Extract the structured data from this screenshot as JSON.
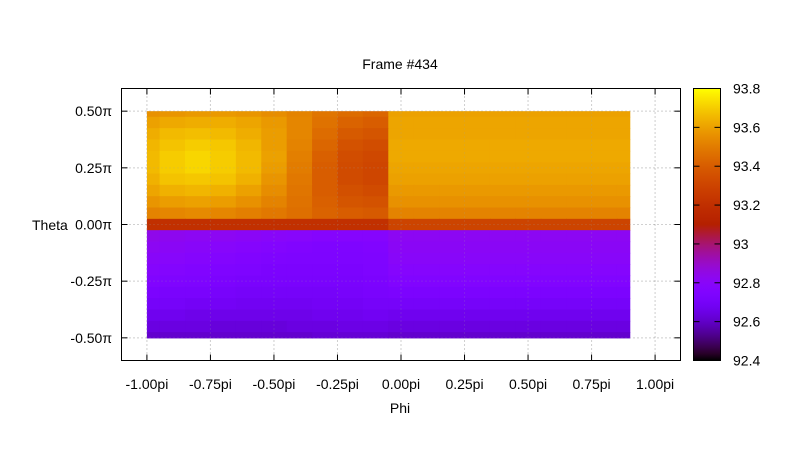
{
  "chart_data": {
    "type": "heatmap",
    "title": "Frame #434",
    "xlabel": "Phi",
    "ylabel": "Theta",
    "xlim": [
      -1.1,
      1.1
    ],
    "ylim": [
      -0.6,
      0.6
    ],
    "x_ticks": [
      {
        "value": -1.0,
        "label": "-1.00pi"
      },
      {
        "value": -0.75,
        "label": "-0.75pi"
      },
      {
        "value": -0.5,
        "label": "-0.50pi"
      },
      {
        "value": -0.25,
        "label": "-0.25pi"
      },
      {
        "value": 0.0,
        "label": "0.00pi"
      },
      {
        "value": 0.25,
        "label": "0.25pi"
      },
      {
        "value": 0.5,
        "label": "0.50pi"
      },
      {
        "value": 0.75,
        "label": "0.75pi"
      },
      {
        "value": 1.0,
        "label": "1.00pi"
      }
    ],
    "y_ticks": [
      {
        "value": 0.5,
        "label": "0.50π"
      },
      {
        "value": 0.25,
        "label": "0.25π"
      },
      {
        "value": 0.0,
        "label": "0.00π"
      },
      {
        "value": -0.25,
        "label": "-0.25π"
      },
      {
        "value": -0.5,
        "label": "-0.50π"
      }
    ],
    "grid": true,
    "data_extent": {
      "phi": [
        -1.0,
        0.9
      ],
      "theta": [
        -0.5,
        0.5
      ]
    },
    "phi_samples": [
      -1.0,
      -0.9,
      -0.8,
      -0.7,
      -0.6,
      -0.5,
      -0.4,
      -0.3,
      -0.2,
      -0.1,
      0.0,
      0.1,
      0.2,
      0.3,
      0.4,
      0.5,
      0.6,
      0.7,
      0.8,
      0.9
    ],
    "theta_samples": [
      0.5,
      0.45,
      0.4,
      0.35,
      0.3,
      0.25,
      0.2,
      0.15,
      0.1,
      0.05,
      0.0,
      -0.05,
      -0.1,
      -0.15,
      -0.2,
      -0.25,
      -0.3,
      -0.35,
      -0.4,
      -0.45,
      -0.5
    ],
    "values": [
      [
        93.56,
        93.57,
        93.58,
        93.58,
        93.57,
        93.55,
        93.52,
        93.48,
        93.45,
        93.43,
        93.6,
        93.6,
        93.6,
        93.6,
        93.6,
        93.6,
        93.6,
        93.6,
        93.6,
        93.6
      ],
      [
        93.6,
        93.62,
        93.63,
        93.63,
        93.61,
        93.58,
        93.53,
        93.47,
        93.42,
        93.4,
        93.61,
        93.61,
        93.61,
        93.61,
        93.61,
        93.61,
        93.61,
        93.61,
        93.61,
        93.61
      ],
      [
        93.63,
        93.66,
        93.67,
        93.66,
        93.63,
        93.59,
        93.53,
        93.45,
        93.39,
        93.37,
        93.61,
        93.61,
        93.61,
        93.61,
        93.61,
        93.61,
        93.61,
        93.61,
        93.61,
        93.61
      ],
      [
        93.65,
        93.68,
        93.7,
        93.69,
        93.65,
        93.59,
        93.52,
        93.43,
        93.36,
        93.34,
        93.62,
        93.62,
        93.62,
        93.62,
        93.62,
        93.62,
        93.62,
        93.62,
        93.62,
        93.62
      ],
      [
        93.66,
        93.7,
        93.72,
        93.7,
        93.66,
        93.6,
        93.51,
        93.41,
        93.34,
        93.32,
        93.62,
        93.62,
        93.62,
        93.62,
        93.62,
        93.62,
        93.62,
        93.62,
        93.62,
        93.62
      ],
      [
        93.66,
        93.7,
        93.72,
        93.7,
        93.66,
        93.59,
        93.5,
        93.4,
        93.33,
        93.31,
        93.61,
        93.61,
        93.61,
        93.61,
        93.61,
        93.61,
        93.61,
        93.61,
        93.61,
        93.61
      ],
      [
        93.64,
        93.68,
        93.69,
        93.68,
        93.64,
        93.57,
        93.49,
        93.4,
        93.33,
        93.31,
        93.6,
        93.6,
        93.6,
        93.6,
        93.6,
        93.6,
        93.6,
        93.6,
        93.6,
        93.6
      ],
      [
        93.61,
        93.64,
        93.65,
        93.64,
        93.6,
        93.55,
        93.48,
        93.4,
        93.35,
        93.33,
        93.58,
        93.58,
        93.58,
        93.58,
        93.58,
        93.58,
        93.58,
        93.58,
        93.58,
        93.58
      ],
      [
        93.57,
        93.59,
        93.6,
        93.59,
        93.56,
        93.52,
        93.47,
        93.41,
        93.37,
        93.36,
        93.56,
        93.56,
        93.56,
        93.56,
        93.56,
        93.56,
        93.56,
        93.56,
        93.56,
        93.56
      ],
      [
        93.52,
        93.53,
        93.54,
        93.53,
        93.51,
        93.49,
        93.46,
        93.42,
        93.4,
        93.39,
        93.52,
        93.52,
        93.52,
        93.52,
        93.52,
        93.52,
        93.52,
        93.52,
        93.52,
        93.52
      ],
      [
        93.2,
        93.2,
        93.2,
        93.2,
        93.2,
        93.2,
        93.2,
        93.2,
        93.2,
        93.2,
        93.3,
        93.3,
        93.3,
        93.3,
        93.3,
        93.3,
        93.3,
        93.3,
        93.3,
        93.3
      ],
      [
        92.84,
        92.83,
        92.82,
        92.82,
        92.81,
        92.8,
        92.79,
        92.78,
        92.78,
        92.78,
        92.82,
        92.82,
        92.82,
        92.82,
        92.82,
        92.82,
        92.82,
        92.82,
        92.82,
        92.82
      ],
      [
        92.82,
        92.81,
        92.8,
        92.79,
        92.78,
        92.77,
        92.76,
        92.75,
        92.75,
        92.76,
        92.81,
        92.81,
        92.81,
        92.81,
        92.81,
        92.81,
        92.81,
        92.81,
        92.81,
        92.81
      ],
      [
        92.8,
        92.79,
        92.78,
        92.77,
        92.76,
        92.75,
        92.74,
        92.74,
        92.74,
        92.75,
        92.8,
        92.8,
        92.8,
        92.8,
        92.8,
        92.8,
        92.8,
        92.8,
        92.8,
        92.8
      ],
      [
        92.78,
        92.77,
        92.76,
        92.75,
        92.74,
        92.73,
        92.73,
        92.73,
        92.73,
        92.74,
        92.78,
        92.78,
        92.78,
        92.78,
        92.78,
        92.78,
        92.78,
        92.78,
        92.78,
        92.78
      ],
      [
        92.76,
        92.75,
        92.74,
        92.73,
        92.72,
        92.72,
        92.72,
        92.72,
        92.72,
        92.73,
        92.76,
        92.76,
        92.76,
        92.76,
        92.76,
        92.76,
        92.76,
        92.76,
        92.76,
        92.76
      ],
      [
        92.73,
        92.72,
        92.72,
        92.71,
        92.7,
        92.7,
        92.7,
        92.7,
        92.71,
        92.72,
        92.73,
        92.73,
        92.73,
        92.73,
        92.73,
        92.73,
        92.73,
        92.73,
        92.73,
        92.73
      ],
      [
        92.7,
        92.7,
        92.69,
        92.69,
        92.68,
        92.68,
        92.68,
        92.69,
        92.69,
        92.7,
        92.7,
        92.7,
        92.7,
        92.7,
        92.7,
        92.7,
        92.7,
        92.7,
        92.7,
        92.7
      ],
      [
        92.67,
        92.67,
        92.66,
        92.66,
        92.66,
        92.66,
        92.66,
        92.67,
        92.67,
        92.68,
        92.67,
        92.67,
        92.67,
        92.67,
        92.67,
        92.67,
        92.67,
        92.67,
        92.67,
        92.67
      ],
      [
        92.64,
        92.64,
        92.64,
        92.63,
        92.63,
        92.63,
        92.64,
        92.64,
        92.65,
        92.65,
        92.64,
        92.64,
        92.64,
        92.64,
        92.64,
        92.64,
        92.64,
        92.64,
        92.64,
        92.64
      ],
      [
        92.61,
        92.61,
        92.61,
        92.61,
        92.61,
        92.61,
        92.61,
        92.62,
        92.62,
        92.62,
        92.61,
        92.61,
        92.61,
        92.61,
        92.61,
        92.61,
        92.61,
        92.61,
        92.61,
        92.61
      ]
    ],
    "colorbar": {
      "range": [
        92.4,
        93.8
      ],
      "ticks": [
        {
          "value": 93.8,
          "label": "93.8"
        },
        {
          "value": 93.6,
          "label": "93.6"
        },
        {
          "value": 93.4,
          "label": "93.4"
        },
        {
          "value": 93.2,
          "label": "93.2"
        },
        {
          "value": 93.0,
          "label": "93"
        },
        {
          "value": 92.8,
          "label": "92.8"
        },
        {
          "value": 92.6,
          "label": "92.6"
        },
        {
          "value": 92.4,
          "label": "92.4"
        }
      ],
      "palette": "gnuplot-pm3d"
    }
  }
}
